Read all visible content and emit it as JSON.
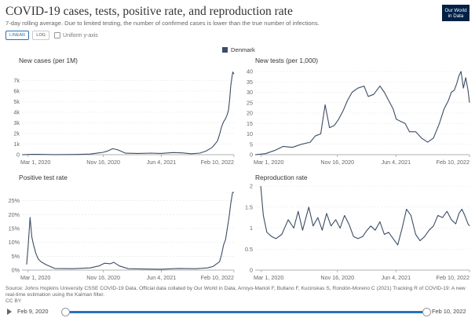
{
  "header": {
    "title": "COVID-19 cases, tests, positive rate, and reproduction rate",
    "subtitle": "7-day rolling average. Due to limited testing, the number of confirmed cases is lower than the true number of infections."
  },
  "logo": {
    "line1": "Our World",
    "line2": "in Data"
  },
  "controls": {
    "linear_label": "LINEAR",
    "log_label": "LOG",
    "uniform_label": "Uniform y-axis"
  },
  "legend": {
    "label": "Denmark",
    "color": "#3b4d66"
  },
  "colors": {
    "line": "#3b4d66",
    "grid": "#e3e3e3",
    "axis": "#999999",
    "tick_text": "#666666",
    "accent": "#2c6fbb"
  },
  "x_ticks": [
    "Mar 1, 2020",
    "Nov 16, 2020",
    "Jun 4, 2021",
    "Feb 10, 2022"
  ],
  "chart_data": [
    {
      "type": "line",
      "title": "New cases (per 1M)",
      "x_range": [
        "2020-02-09",
        "2022-02-10"
      ],
      "ylim": [
        0,
        8000
      ],
      "yticks": [
        0,
        1000,
        2000,
        3000,
        4000,
        5000,
        6000,
        7000
      ],
      "ytick_labels": [
        "0",
        "1k",
        "2k",
        "3k",
        "4k",
        "5k",
        "6k",
        "7k"
      ],
      "series": [
        {
          "x": [
            "2020-02-09",
            "2020-03-15",
            "2020-04-05",
            "2020-06-01",
            "2020-08-15",
            "2020-10-01",
            "2020-11-15",
            "2020-12-01",
            "2020-12-18",
            "2021-01-05",
            "2021-02-01",
            "2021-03-15",
            "2021-05-01",
            "2021-06-01",
            "2021-07-15",
            "2021-08-15",
            "2021-09-15",
            "2021-10-15",
            "2021-11-05",
            "2021-11-25",
            "2021-12-05",
            "2021-12-15",
            "2021-12-22",
            "2021-12-29",
            "2022-01-05",
            "2022-01-12",
            "2022-01-18",
            "2022-01-22",
            "2022-01-26",
            "2022-01-30",
            "2022-02-03",
            "2022-02-06",
            "2022-02-10"
          ],
          "values": [
            0,
            30,
            40,
            10,
            20,
            60,
            220,
            350,
            560,
            450,
            140,
            120,
            150,
            120,
            200,
            170,
            90,
            150,
            330,
            650,
            950,
            1300,
            1900,
            2600,
            3100,
            3400,
            3800,
            4200,
            5200,
            6500,
            7300,
            7800,
            7600
          ]
        }
      ]
    },
    {
      "type": "line",
      "title": "New tests (per 1,000)",
      "x_range": [
        "2020-02-09",
        "2022-02-10"
      ],
      "ylim": [
        0,
        40
      ],
      "yticks": [
        0,
        5,
        10,
        15,
        20,
        25,
        30,
        35,
        40
      ],
      "ytick_labels": [
        "0",
        "5",
        "10",
        "15",
        "20",
        "25",
        "30",
        "35",
        "40"
      ],
      "series": [
        {
          "x": [
            "2020-02-09",
            "2020-03-15",
            "2020-04-15",
            "2020-05-15",
            "2020-06-15",
            "2020-07-15",
            "2020-08-15",
            "2020-09-01",
            "2020-09-20",
            "2020-10-05",
            "2020-10-20",
            "2020-11-05",
            "2020-11-20",
            "2020-12-05",
            "2020-12-20",
            "2021-01-05",
            "2021-01-25",
            "2021-02-15",
            "2021-03-01",
            "2021-03-20",
            "2021-04-10",
            "2021-04-25",
            "2021-05-10",
            "2021-05-25",
            "2021-06-05",
            "2021-06-20",
            "2021-07-05",
            "2021-07-20",
            "2021-08-10",
            "2021-08-30",
            "2021-09-20",
            "2021-10-10",
            "2021-10-30",
            "2021-11-15",
            "2021-11-30",
            "2021-12-10",
            "2021-12-20",
            "2021-12-28",
            "2022-01-05",
            "2022-01-12",
            "2022-01-20",
            "2022-01-28",
            "2022-02-05",
            "2022-02-10"
          ],
          "values": [
            0,
            0.5,
            2,
            4,
            3.5,
            5,
            6,
            9,
            10,
            24,
            13,
            14,
            17,
            21,
            26,
            30,
            32,
            33,
            28,
            29,
            33,
            30,
            26,
            22,
            17,
            16,
            15,
            11,
            11,
            8,
            6,
            8,
            15,
            22,
            26,
            30,
            31,
            34,
            38,
            40,
            32,
            37,
            31,
            25
          ]
        }
      ]
    },
    {
      "type": "line",
      "title": "Positive test rate",
      "x_range": [
        "2020-02-09",
        "2022-02-10"
      ],
      "ylim": [
        0,
        30
      ],
      "yticks": [
        0,
        5,
        10,
        15,
        20,
        25
      ],
      "ytick_labels": [
        "0%",
        "5%",
        "10%",
        "15%",
        "20%",
        "25%"
      ],
      "series": [
        {
          "x": [
            "2020-02-25",
            "2020-03-01",
            "2020-03-08",
            "2020-03-14",
            "2020-03-20",
            "2020-03-28",
            "2020-04-05",
            "2020-04-15",
            "2020-05-01",
            "2020-06-01",
            "2020-08-01",
            "2020-10-01",
            "2020-11-01",
            "2020-11-20",
            "2020-12-10",
            "2020-12-22",
            "2021-01-10",
            "2021-02-10",
            "2021-04-01",
            "2021-06-01",
            "2021-08-01",
            "2021-10-01",
            "2021-11-10",
            "2021-11-30",
            "2021-12-15",
            "2021-12-22",
            "2021-12-29",
            "2022-01-05",
            "2022-01-12",
            "2022-01-18",
            "2022-01-24",
            "2022-01-30",
            "2022-02-05",
            "2022-02-10"
          ],
          "values": [
            2,
            8,
            19,
            12,
            9,
            6,
            4,
            3,
            2,
            0.6,
            0.5,
            0.8,
            1.5,
            2.5,
            2.3,
            2.8,
            1.5,
            0.5,
            0.4,
            0.3,
            0.6,
            0.5,
            0.8,
            1.3,
            2.5,
            3,
            5.5,
            9,
            11,
            15,
            19,
            24,
            28,
            28
          ]
        }
      ]
    },
    {
      "type": "line",
      "title": "Reproduction rate",
      "x_range": [
        "2020-02-09",
        "2022-02-10"
      ],
      "ylim": [
        0,
        2
      ],
      "yticks": [
        0,
        0.5,
        1,
        1.5,
        2
      ],
      "ytick_labels": [
        "0",
        "0.5",
        "1",
        "1.5",
        "2"
      ],
      "series": [
        {
          "x": [
            "2020-02-28",
            "2020-03-08",
            "2020-03-20",
            "2020-04-05",
            "2020-04-20",
            "2020-05-10",
            "2020-06-01",
            "2020-06-20",
            "2020-07-05",
            "2020-07-20",
            "2020-08-10",
            "2020-08-25",
            "2020-09-10",
            "2020-09-25",
            "2020-10-10",
            "2020-10-25",
            "2020-11-10",
            "2020-11-25",
            "2020-12-10",
            "2020-12-25",
            "2021-01-10",
            "2021-01-25",
            "2021-02-10",
            "2021-02-25",
            "2021-03-10",
            "2021-03-25",
            "2021-04-10",
            "2021-04-25",
            "2021-05-10",
            "2021-05-25",
            "2021-06-10",
            "2021-06-25",
            "2021-07-10",
            "2021-07-25",
            "2021-08-10",
            "2021-08-25",
            "2021-09-10",
            "2021-09-25",
            "2021-10-10",
            "2021-10-25",
            "2021-11-10",
            "2021-11-25",
            "2021-12-10",
            "2021-12-25",
            "2022-01-05",
            "2022-01-15",
            "2022-01-25",
            "2022-02-05",
            "2022-02-10"
          ],
          "values": [
            2,
            1.3,
            0.9,
            0.8,
            0.75,
            0.85,
            1.2,
            1.0,
            1.4,
            0.95,
            1.5,
            1.05,
            1.25,
            0.95,
            1.35,
            1.05,
            1.2,
            1.0,
            1.3,
            1.1,
            0.8,
            0.75,
            0.8,
            0.95,
            1.05,
            0.95,
            1.15,
            0.85,
            0.9,
            0.75,
            0.6,
            1.0,
            1.45,
            1.3,
            0.85,
            0.7,
            0.8,
            0.95,
            1.05,
            1.3,
            1.25,
            1.4,
            1.2,
            1.1,
            1.35,
            1.45,
            1.3,
            1.1,
            1.05
          ]
        }
      ]
    }
  ],
  "footer": {
    "source": "Source: Johns Hopkins University CSSE COVID-19 Data, Official data collated by Our World in Data, Arroyo-Marioli F, Bullano F, Kucinskas S, Rondón-Moreno C (2021) Tracking R of COVID-19: A new real-time estimation using the Kalman filter.",
    "license": "CC BY"
  },
  "timeline": {
    "start_label": "Feb 9, 2020",
    "end_label": "Feb 10, 2022"
  }
}
